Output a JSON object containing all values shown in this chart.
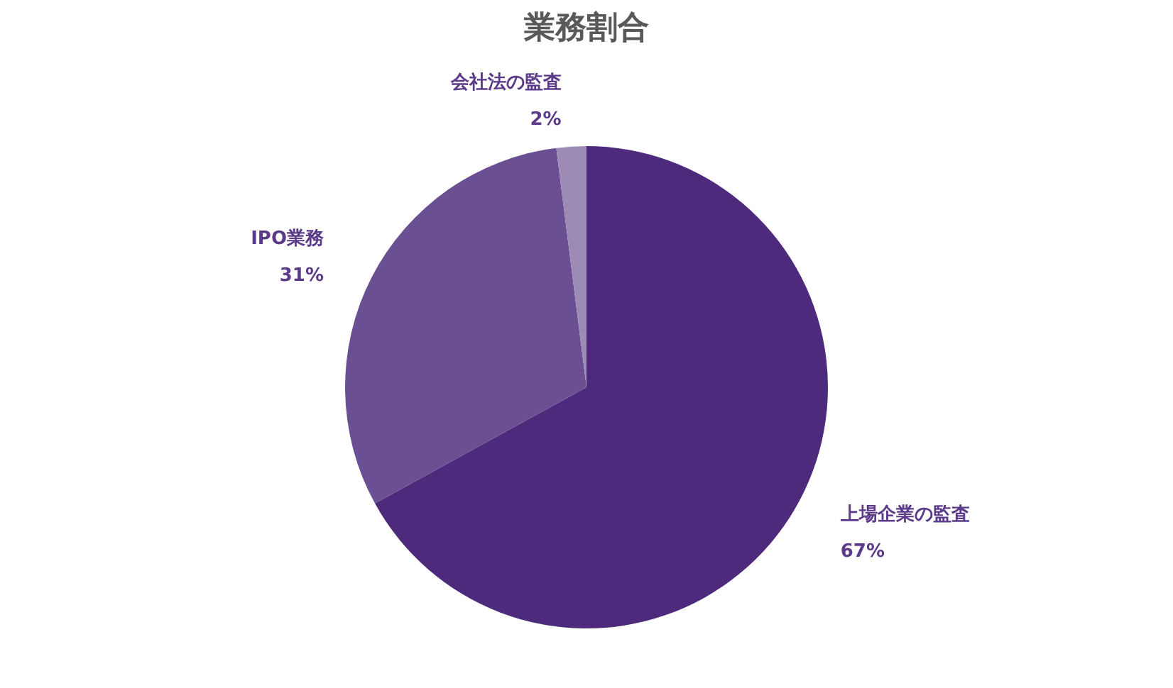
{
  "chart_data": {
    "type": "pie",
    "title": "業務割合",
    "categories": [
      "上場企業の監査",
      "IPO業務",
      "会社法の監査"
    ],
    "values": [
      67,
      31,
      2
    ],
    "colors": [
      "#4e2a7c",
      "#6a4f92",
      "#9c8bb5"
    ],
    "value_labels": [
      "67%",
      "31%",
      "2%"
    ],
    "legend": false
  }
}
